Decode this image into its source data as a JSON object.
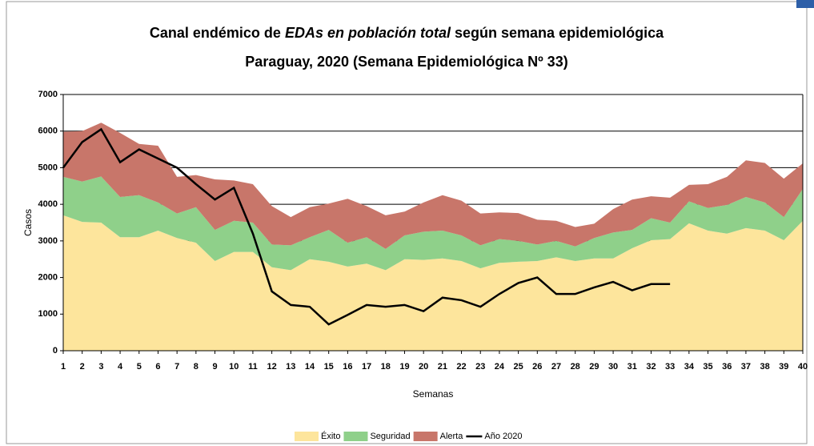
{
  "chart_data": {
    "type": "area",
    "title": [
      "Canal endémico de",
      "EDAs en población total",
      "según semana epidemiológica"
    ],
    "subtitle": "Paraguay, 2020 (Semana Epidemiológica Nº 33)",
    "y_label": "Casos",
    "x_label": "Semanas",
    "categories": [
      "1",
      "2",
      "3",
      "4",
      "5",
      "6",
      "7",
      "8",
      "9",
      "10",
      "11",
      "12",
      "13",
      "14",
      "15",
      "16",
      "17",
      "18",
      "19",
      "20",
      "21",
      "22",
      "23",
      "24",
      "25",
      "26",
      "27",
      "28",
      "29",
      "30",
      "31",
      "32",
      "33",
      "34",
      "35",
      "36",
      "37",
      "38",
      "39",
      "40"
    ],
    "ylim": [
      0,
      7000
    ],
    "yticks": [
      0,
      1000,
      2000,
      3000,
      4000,
      5000,
      6000,
      7000
    ],
    "grid": true,
    "stacked": true,
    "legend": "bottom",
    "series": [
      {
        "name": "Éxito",
        "color": "#fde59c",
        "type": "area",
        "values": [
          3700,
          3520,
          3500,
          3100,
          3100,
          3280,
          3080,
          2950,
          2450,
          2700,
          2700,
          2280,
          2200,
          2500,
          2430,
          2300,
          2380,
          2200,
          2500,
          2480,
          2520,
          2450,
          2250,
          2400,
          2430,
          2450,
          2550,
          2450,
          2520,
          2520,
          2800,
          3020,
          3050,
          3480,
          3280,
          3200,
          3350,
          3280,
          3020,
          3550
        ]
      },
      {
        "name": "Seguridad",
        "color": "#8fd08a",
        "type": "area",
        "values": [
          1050,
          1100,
          1260,
          1100,
          1150,
          770,
          670,
          970,
          850,
          850,
          800,
          620,
          680,
          600,
          870,
          650,
          720,
          580,
          650,
          770,
          760,
          700,
          630,
          650,
          570,
          450,
          450,
          400,
          560,
          710,
          500,
          600,
          450,
          600,
          620,
          780,
          850,
          770,
          630,
          870
        ]
      },
      {
        "name": "Alerta",
        "color": "#c8766a",
        "type": "area",
        "values": [
          1230,
          1380,
          1470,
          1750,
          1400,
          1550,
          1000,
          880,
          1380,
          1100,
          1050,
          1050,
          770,
          820,
          720,
          1200,
          850,
          920,
          650,
          800,
          970,
          950,
          870,
          730,
          760,
          680,
          550,
          530,
          390,
          640,
          830,
          600,
          680,
          450,
          650,
          770,
          1000,
          1080,
          1050,
          700
        ]
      },
      {
        "name": "Año 2020",
        "color": "#000000",
        "type": "line",
        "values": [
          5000,
          5700,
          6050,
          5150,
          5500,
          5250,
          5000,
          4550,
          4130,
          4450,
          3200,
          1620,
          1250,
          1200,
          720,
          980,
          1250,
          1200,
          1250,
          1080,
          1450,
          1380,
          1200,
          1550,
          1850,
          2000,
          1550,
          1550,
          1730,
          1880,
          1650,
          1820,
          1820,
          null,
          null,
          null,
          null,
          null,
          null,
          null
        ]
      }
    ]
  }
}
